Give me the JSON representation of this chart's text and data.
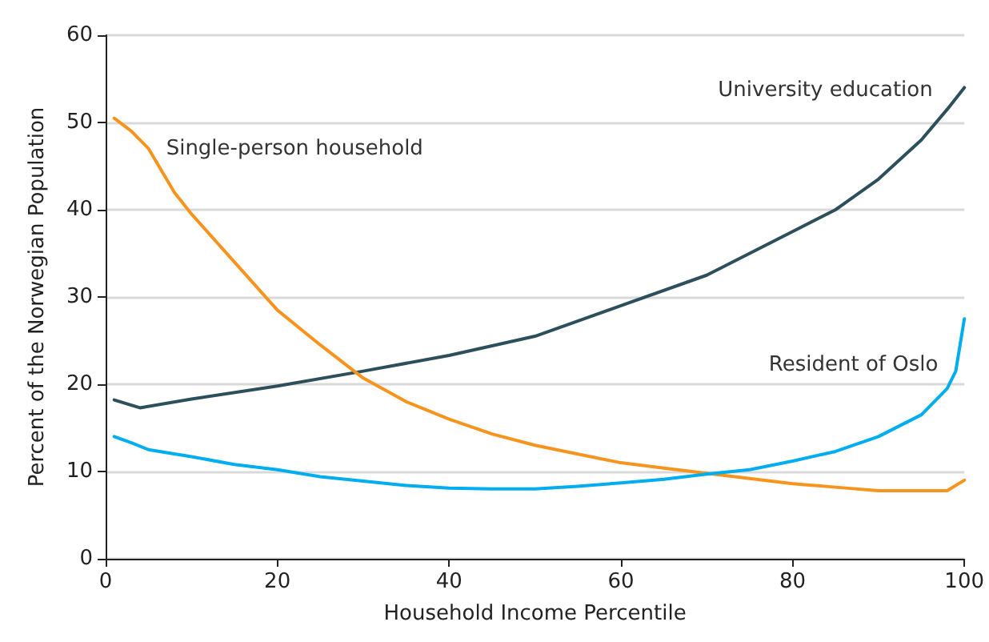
{
  "chart_data": {
    "type": "line",
    "xlabel": "Household Income Percentile",
    "ylabel": "Percent of the Norwegian Population",
    "xlim": [
      0,
      100
    ],
    "xticks": [
      0,
      20,
      40,
      60,
      80,
      100
    ],
    "ylim": [
      0,
      60
    ],
    "yticks": [
      0,
      10,
      20,
      30,
      40,
      50,
      60
    ],
    "grid": "y",
    "legend": false,
    "marker": "none",
    "line_style": "solid",
    "series": [
      {
        "name": "University education",
        "color": "#2d4f5c",
        "x": [
          1,
          4,
          10,
          20,
          30,
          40,
          50,
          60,
          70,
          80,
          85,
          90,
          95,
          98,
          100
        ],
        "values": [
          18.2,
          17.3,
          18.3,
          19.8,
          21.5,
          23.3,
          25.5,
          29,
          32.5,
          37.5,
          40,
          43.5,
          48,
          51.5,
          54
        ]
      },
      {
        "name": "Single-person household",
        "color": "#f7941d",
        "x": [
          1,
          3,
          5,
          8,
          10,
          15,
          20,
          25,
          30,
          35,
          40,
          45,
          50,
          55,
          60,
          65,
          70,
          75,
          80,
          85,
          90,
          95,
          98,
          100
        ],
        "values": [
          50.5,
          49,
          47,
          42,
          39.5,
          34,
          28.5,
          24.5,
          20.7,
          18,
          16,
          14.3,
          13,
          12,
          11,
          10.4,
          9.8,
          9.2,
          8.6,
          8.2,
          7.8,
          7.8,
          7.8,
          9
        ]
      },
      {
        "name": "Resident of Oslo",
        "color": "#00aeef",
        "x": [
          1,
          3,
          5,
          10,
          15,
          20,
          25,
          30,
          35,
          40,
          45,
          50,
          55,
          60,
          65,
          70,
          75,
          80,
          85,
          90,
          95,
          98,
          99,
          100
        ],
        "values": [
          14,
          13.3,
          12.5,
          11.7,
          10.8,
          10.2,
          9.4,
          8.9,
          8.4,
          8.1,
          8,
          8,
          8.3,
          8.7,
          9.1,
          9.7,
          10.2,
          11.2,
          12.3,
          14,
          16.5,
          19.5,
          21.5,
          27.5
        ]
      }
    ]
  }
}
